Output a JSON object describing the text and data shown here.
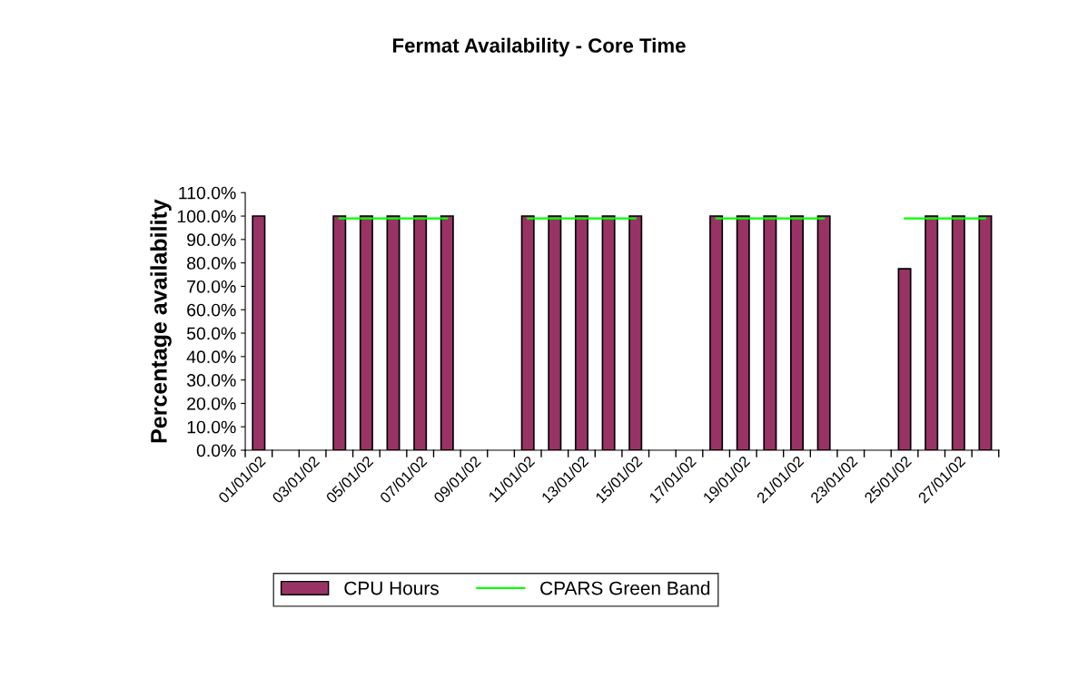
{
  "chart_data": {
    "type": "bar",
    "title": "Fermat Availability - Core Time",
    "ylabel": "Percentage availability",
    "categories": [
      "01/01/02",
      null,
      "03/01/02",
      null,
      "05/01/02",
      null,
      "07/01/02",
      null,
      "09/01/02",
      null,
      "11/01/02",
      null,
      "13/01/02",
      null,
      "15/01/02",
      null,
      "17/01/02",
      null,
      "19/01/02",
      null,
      "21/01/02",
      null,
      "23/01/02",
      null,
      "25/01/02",
      null,
      "27/01/02",
      null
    ],
    "series": [
      {
        "name": "CPU Hours",
        "color": "#993366",
        "values": [
          100,
          null,
          null,
          100,
          100,
          100,
          100,
          100,
          null,
          null,
          100,
          100,
          100,
          100,
          100,
          null,
          null,
          100,
          100,
          100,
          100,
          100,
          null,
          null,
          77.5,
          100,
          100,
          100
        ]
      },
      {
        "name": "CPARS Green Band",
        "type": "line",
        "color": "#00ff00",
        "values": [
          null,
          null,
          null,
          99,
          99,
          99,
          99,
          99,
          null,
          null,
          99,
          99,
          99,
          99,
          99,
          null,
          null,
          99,
          99,
          99,
          99,
          99,
          null,
          null,
          99,
          99,
          99,
          99
        ]
      }
    ],
    "ylim": [
      0,
      110
    ],
    "yticks": [
      {
        "value": 0,
        "label": "0.0%"
      },
      {
        "value": 10,
        "label": "10.0%"
      },
      {
        "value": 20,
        "label": "20.0%"
      },
      {
        "value": 30,
        "label": "30.0%"
      },
      {
        "value": 40,
        "label": "40.0%"
      },
      {
        "value": 50,
        "label": "50.0%"
      },
      {
        "value": 60,
        "label": "60.0%"
      },
      {
        "value": 70,
        "label": "70.0%"
      },
      {
        "value": 80,
        "label": "80.0%"
      },
      {
        "value": 90,
        "label": "90.0%"
      },
      {
        "value": 100,
        "label": "100.0%"
      },
      {
        "value": 110,
        "label": "110.0%"
      }
    ],
    "grid": false,
    "legend": "bottom"
  }
}
